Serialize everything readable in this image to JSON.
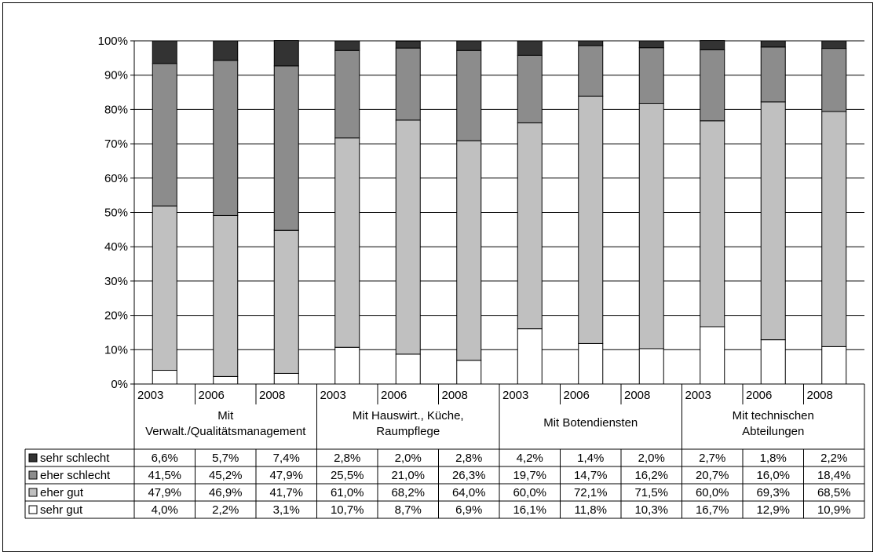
{
  "chart_data": {
    "type": "bar",
    "stacked": true,
    "y_ticks": [
      "0%",
      "10%",
      "20%",
      "30%",
      "40%",
      "50%",
      "60%",
      "70%",
      "80%",
      "90%",
      "100%"
    ],
    "ylim": [
      0,
      100
    ],
    "grid": true,
    "legend_position": "table-left",
    "groups": [
      {
        "label": "Mit Verwalt./Qualitätsmanagement",
        "lines": [
          "Mit",
          "Verwalt./Qualitätsmanagement"
        ]
      },
      {
        "label": "Mit Hauswirt., Küche, Raumpflege",
        "lines": [
          "Mit Hauswirt., Küche,",
          "Raumpflege"
        ]
      },
      {
        "label": "Mit Botendiensten",
        "lines": [
          "Mit Botendiensten"
        ]
      },
      {
        "label": "Mit technischen Abteilungen",
        "lines": [
          "Mit technischen",
          "Abteilungen"
        ]
      }
    ],
    "categories": [
      "2003",
      "2006",
      "2008",
      "2003",
      "2006",
      "2008",
      "2003",
      "2006",
      "2008",
      "2003",
      "2006",
      "2008"
    ],
    "series": [
      {
        "name": "sehr gut",
        "color": "#ffffff",
        "values": [
          4.0,
          2.2,
          3.1,
          10.7,
          8.7,
          6.9,
          16.1,
          11.8,
          10.3,
          16.7,
          12.9,
          10.9
        ],
        "labels": [
          "4,0%",
          "2,2%",
          "3,1%",
          "10,7%",
          "8,7%",
          "6,9%",
          "16,1%",
          "11,8%",
          "10,3%",
          "16,7%",
          "12,9%",
          "10,9%"
        ]
      },
      {
        "name": "eher gut",
        "color": "#c0c0c0",
        "values": [
          47.9,
          46.9,
          41.7,
          61.0,
          68.2,
          64.0,
          60.0,
          72.1,
          71.5,
          60.0,
          69.3,
          68.5
        ],
        "labels": [
          "47,9%",
          "46,9%",
          "41,7%",
          "61,0%",
          "68,2%",
          "64,0%",
          "60,0%",
          "72,1%",
          "71,5%",
          "60,0%",
          "69,3%",
          "68,5%"
        ]
      },
      {
        "name": "eher schlecht",
        "color": "#8c8c8c",
        "values": [
          41.5,
          45.2,
          47.9,
          25.5,
          21.0,
          26.3,
          19.7,
          14.7,
          16.2,
          20.7,
          16.0,
          18.4
        ],
        "labels": [
          "41,5%",
          "45,2%",
          "47,9%",
          "25,5%",
          "21,0%",
          "26,3%",
          "19,7%",
          "14,7%",
          "16,2%",
          "20,7%",
          "16,0%",
          "18,4%"
        ]
      },
      {
        "name": "sehr schlecht",
        "color": "#333333",
        "values": [
          6.6,
          5.7,
          7.4,
          2.8,
          2.0,
          2.8,
          4.2,
          1.4,
          2.0,
          2.7,
          1.8,
          2.2
        ],
        "labels": [
          "6,6%",
          "5,7%",
          "7,4%",
          "2,8%",
          "2,0%",
          "2,8%",
          "4,2%",
          "1,4%",
          "2,0%",
          "2,7%",
          "1,8%",
          "2,2%"
        ]
      }
    ],
    "table_row_order": [
      "sehr schlecht",
      "eher schlecht",
      "eher gut",
      "sehr gut"
    ]
  }
}
